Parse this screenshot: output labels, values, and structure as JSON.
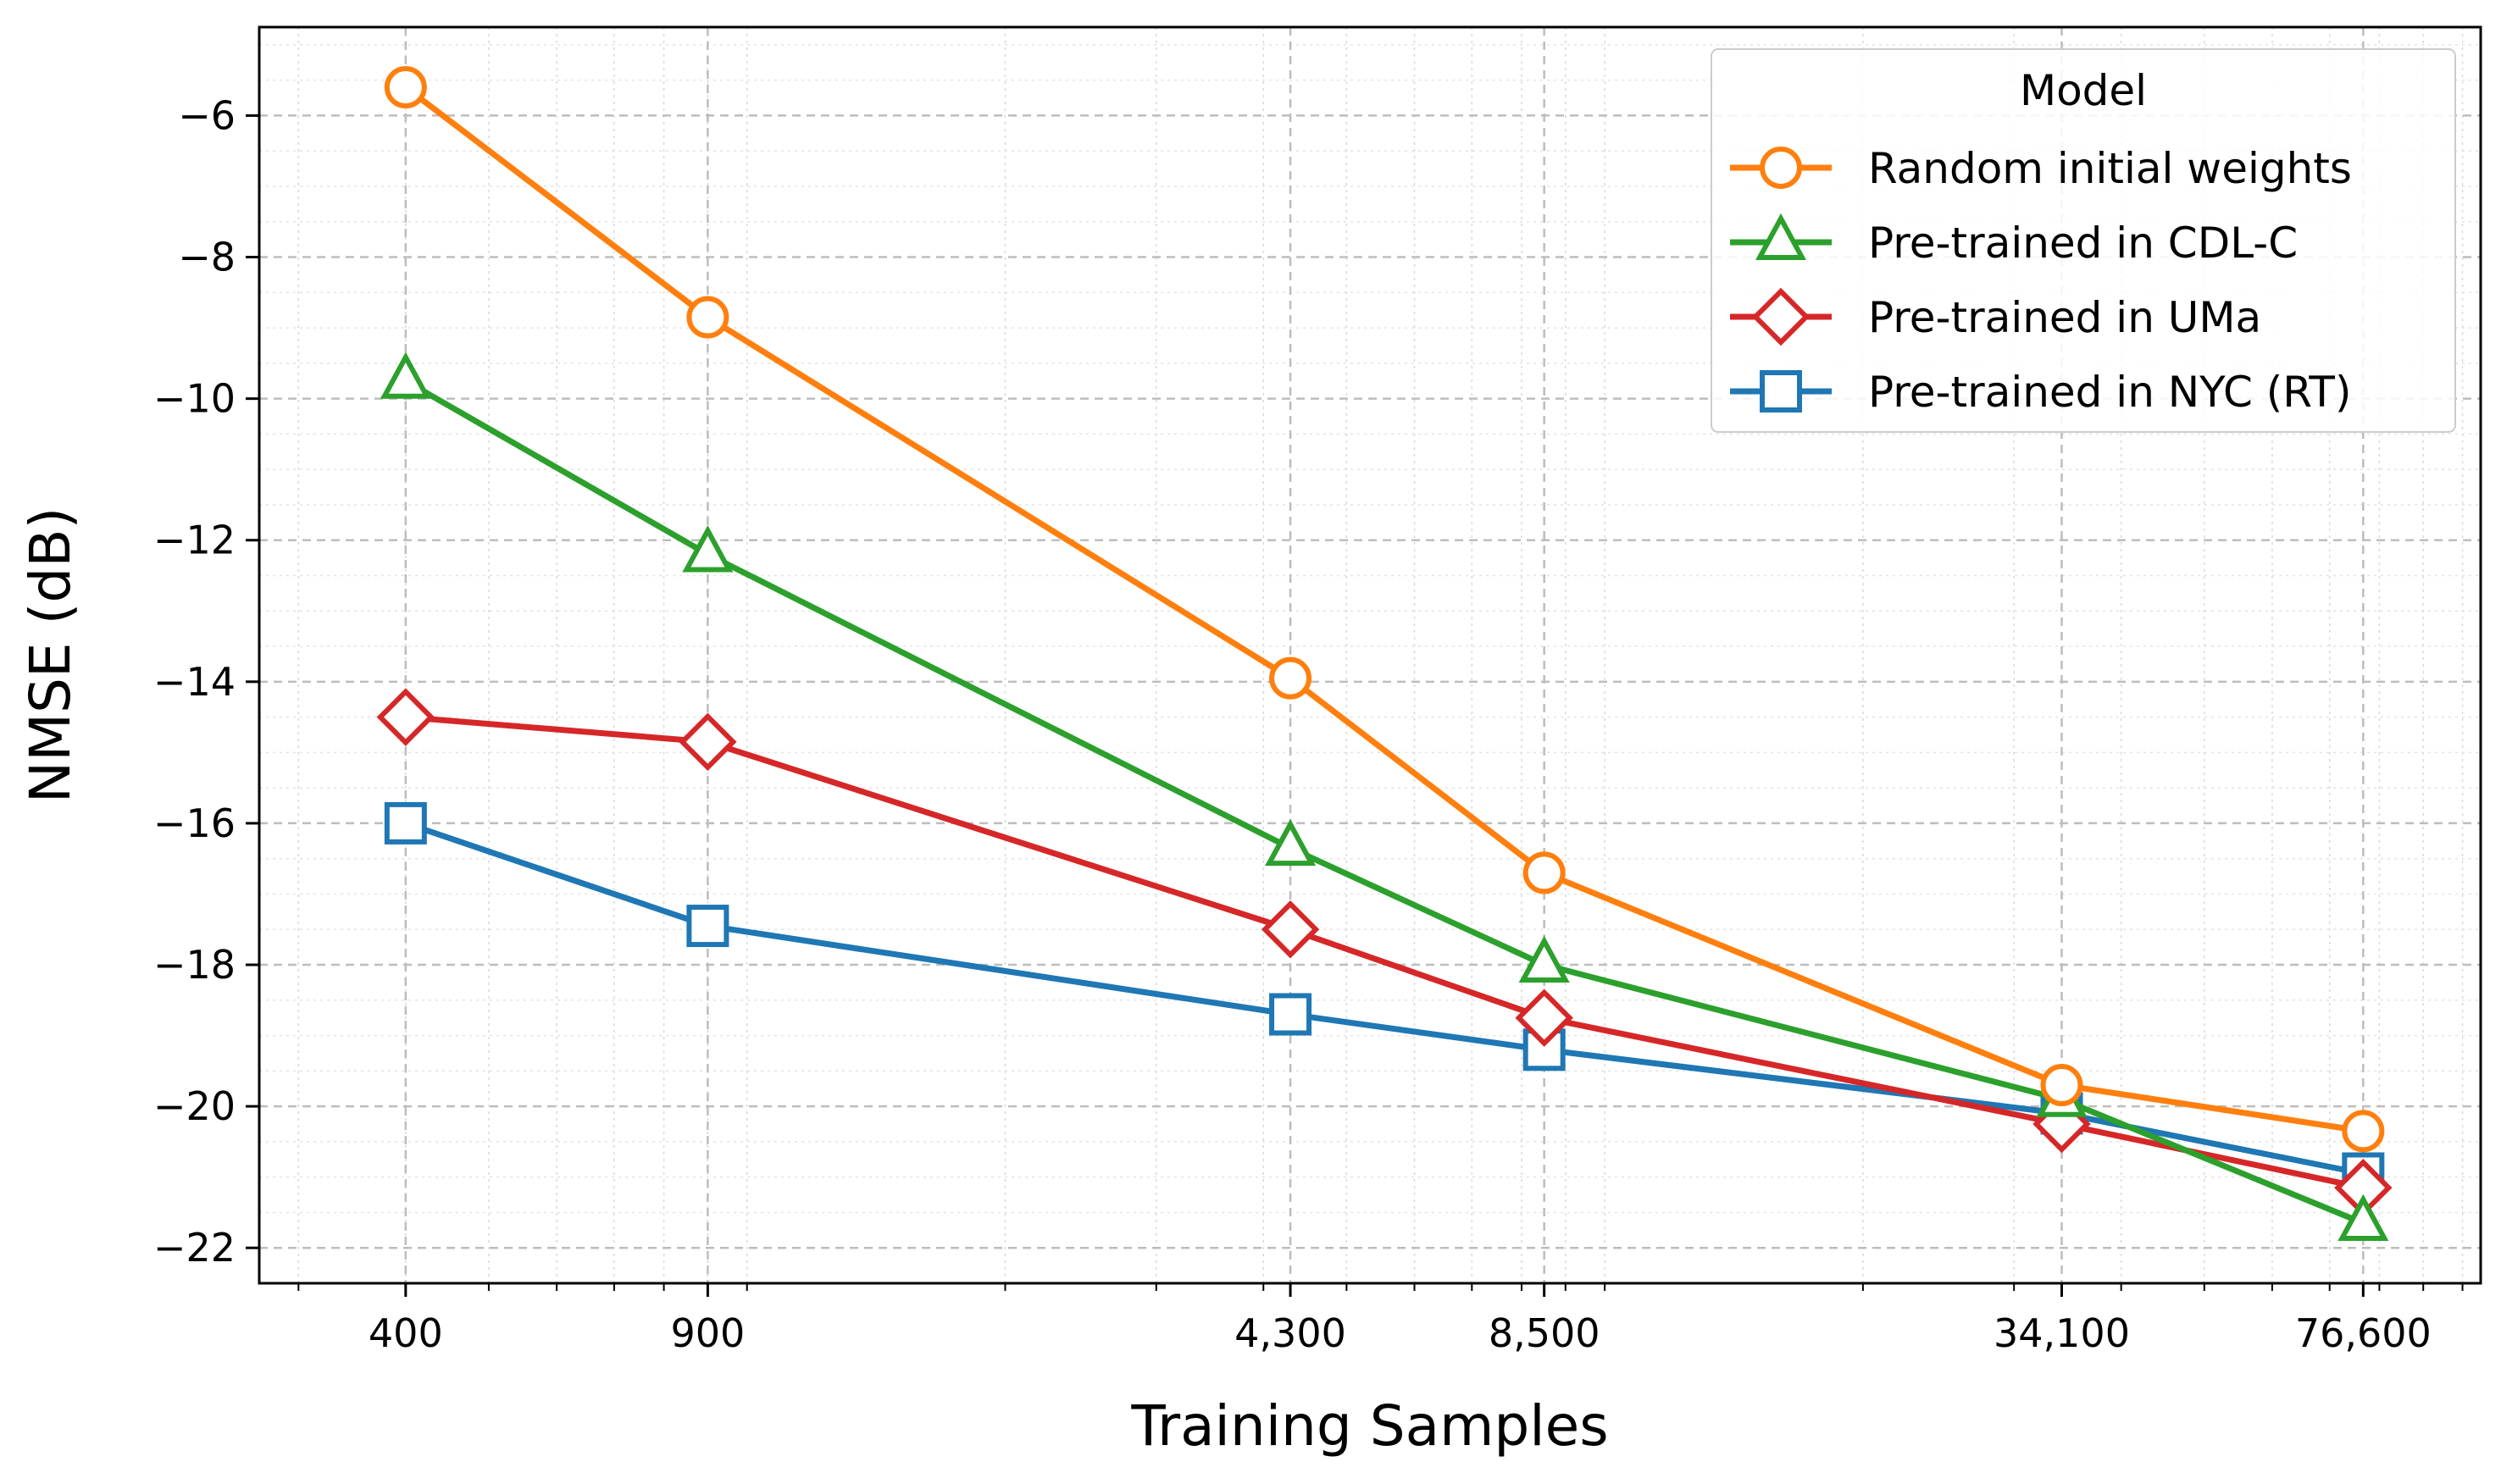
{
  "chart_data": {
    "type": "line",
    "xscale": "log",
    "x": [
      400,
      900,
      4300,
      8500,
      34100,
      76600
    ],
    "x_tick_labels": [
      "400",
      "900",
      "4,300",
      "8,500",
      "34,100",
      "76,600"
    ],
    "xlim": [
      270,
      105000
    ],
    "ylim": [
      -22.5,
      -4.75
    ],
    "y_ticks": [
      -6,
      -8,
      -10,
      -12,
      -14,
      -16,
      -18,
      -20,
      -22
    ],
    "y_tick_labels": [
      "−6",
      "−8",
      "−10",
      "−12",
      "−14",
      "−16",
      "−18",
      "−20",
      "−22"
    ],
    "xlabel": "Training Samples",
    "ylabel": "NMSE (dB)",
    "grid": true,
    "legend_title": "Model",
    "legend_position": "top-right",
    "series": [
      {
        "name": "Random initial weights",
        "color": "#ff7f0e",
        "marker": "circle",
        "values": [
          -5.6,
          -8.85,
          -13.95,
          -16.7,
          -19.7,
          -20.35
        ]
      },
      {
        "name": "Pre-trained in CDL-C",
        "color": "#2ca02c",
        "marker": "triangle",
        "values": [
          -9.75,
          -12.2,
          -16.35,
          -18.0,
          -19.9,
          -21.65
        ]
      },
      {
        "name": "Pre-trained in UMa",
        "color": "#d62728",
        "marker": "diamond",
        "values": [
          -14.5,
          -14.85,
          -17.5,
          -18.75,
          -20.25,
          -21.15
        ]
      },
      {
        "name": "Pre-trained in NYC (RT)",
        "color": "#1f77b4",
        "marker": "square",
        "values": [
          -16.0,
          -17.45,
          -18.7,
          -19.2,
          -20.1,
          -20.95
        ]
      }
    ]
  }
}
